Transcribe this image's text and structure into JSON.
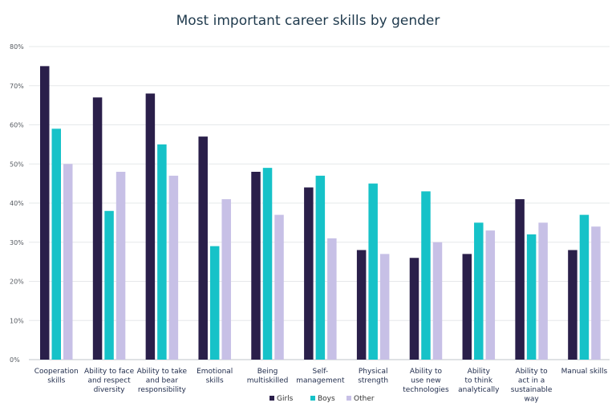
{
  "chart_data": {
    "type": "bar",
    "title": "Most important career skills by gender",
    "categories": [
      [
        "Cooperation",
        "skills"
      ],
      [
        "Ability to face",
        "and respect",
        "diversity"
      ],
      [
        "Ability to take",
        "and bear",
        "responsibility"
      ],
      [
        "Emotional",
        "skills"
      ],
      [
        "Being",
        "multiskilled"
      ],
      [
        "Self-",
        "management"
      ],
      [
        "Physical",
        "strength"
      ],
      [
        "Ability to",
        "use new",
        "technologies"
      ],
      [
        "Ability",
        "to think",
        "analytically"
      ],
      [
        "Ability to",
        "act in a",
        "sustainable",
        "way"
      ],
      [
        "Manual skills"
      ]
    ],
    "series": [
      {
        "name": "Girls",
        "color": "#2a1f4a",
        "values": [
          75,
          67,
          68,
          57,
          48,
          44,
          28,
          26,
          27,
          41,
          28
        ]
      },
      {
        "name": "Boys",
        "color": "#16c2c8",
        "values": [
          59,
          38,
          55,
          29,
          49,
          47,
          45,
          43,
          35,
          32,
          37
        ]
      },
      {
        "name": "Other",
        "color": "#c7c0e6",
        "values": [
          50,
          48,
          47,
          41,
          37,
          31,
          27,
          30,
          33,
          35,
          34
        ]
      }
    ],
    "ylim": [
      0,
      80
    ],
    "yticks": [
      "0%",
      "10%",
      "20%",
      "30%",
      "40%",
      "50%",
      "60%",
      "70%",
      "80%"
    ],
    "grid": true,
    "legend_position": "bottom-center"
  }
}
